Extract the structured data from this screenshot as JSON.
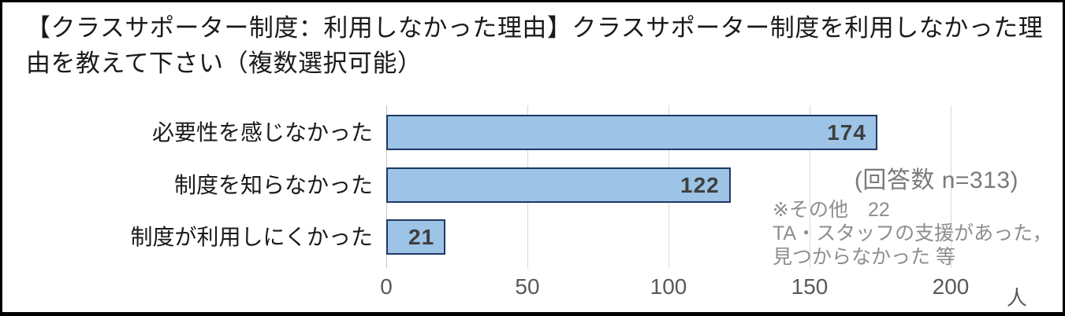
{
  "title": "【クラスサポーター制度：利用しなかった理由】クラスサポーター制度を利用しなかった理由を教えて下さい（複数選択可能）",
  "chart_data": {
    "type": "bar",
    "orientation": "horizontal",
    "title": "【クラスサポーター制度：利用しなかった理由】クラスサポーター制度を利用しなかった理由を教えて下さい（複数選択可能）",
    "categories": [
      "必要性を感じなかった",
      "制度を知らなかった",
      "制度が利用しにくかった"
    ],
    "values": [
      174,
      122,
      21
    ],
    "xlabel": "人",
    "ylabel": "",
    "xlim": [
      0,
      200
    ],
    "ticks": [
      "0",
      "50",
      "100",
      "150",
      "200"
    ],
    "grid": true,
    "legend": "none",
    "bar_fill": "#9DC3E6",
    "bar_border": "#1F3864"
  },
  "annotations": {
    "respondents": "(回答数 n=313)",
    "other_note_line1": "※その他　22",
    "other_note_line2": "TA・スタッフの支援があった，",
    "other_note_line3": "見つからなかった 等"
  },
  "axis": {
    "unit": "人"
  }
}
